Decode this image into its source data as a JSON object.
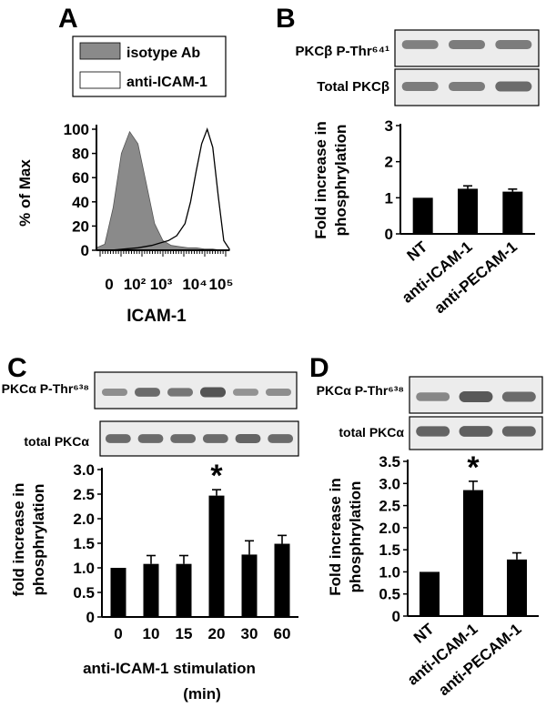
{
  "panels": {
    "A": {
      "letter": "A"
    },
    "B": {
      "letter": "B"
    },
    "C": {
      "letter": "C"
    },
    "D": {
      "letter": "D"
    }
  },
  "chart_data": [
    {
      "id": "A",
      "type": "area",
      "legend": [
        "isotype Ab",
        "anti-ICAM-1"
      ],
      "ylabel": "% of Max",
      "xlabel": "ICAM-1",
      "yticks": [
        "0",
        "20",
        "40",
        "60",
        "80",
        "100"
      ],
      "xticks": [
        "0",
        "10²",
        "10³",
        "10⁴",
        "10⁵"
      ],
      "ylim": [
        0,
        100
      ],
      "series": [
        {
          "name": "isotype Ab",
          "fill": "#8a8a8a",
          "x": [
            0.0,
            0.3,
            0.6,
            0.9,
            1.2,
            1.5,
            1.8,
            2.1,
            2.4,
            2.7,
            3.0,
            3.3,
            3.6,
            3.9,
            4.2,
            4.5,
            4.8
          ],
          "y": [
            2,
            5,
            35,
            80,
            98,
            88,
            55,
            22,
            8,
            4,
            3,
            2,
            2,
            1,
            1,
            0,
            0
          ]
        },
        {
          "name": "anti-ICAM-1",
          "fill": "none",
          "x": [
            0.0,
            0.5,
            1.0,
            1.5,
            2.0,
            2.3,
            2.6,
            2.9,
            3.2,
            3.4,
            3.6,
            3.8,
            4.0,
            4.2,
            4.4,
            4.6,
            4.8
          ],
          "y": [
            0,
            0,
            1,
            2,
            4,
            6,
            8,
            12,
            22,
            40,
            65,
            88,
            100,
            85,
            45,
            8,
            1
          ]
        }
      ]
    },
    {
      "id": "B",
      "type": "bar",
      "blot_labels": [
        "PKCβ P-Thr⁶⁴¹",
        "Total PKCβ"
      ],
      "ylabel": [
        "Fold increase in",
        "phosphrylation"
      ],
      "categories": [
        "NT",
        "anti-ICAM-1",
        "anti-PECAM-1"
      ],
      "values": [
        1.0,
        1.25,
        1.17
      ],
      "errors": [
        0,
        0.08,
        0.07
      ],
      "yticks": [
        "0",
        "1",
        "2",
        "3"
      ],
      "ylim": [
        0,
        3
      ]
    },
    {
      "id": "C",
      "type": "bar",
      "blot_labels": [
        "PKCα P-Thr⁶³⁸",
        "total PKCα"
      ],
      "ylabel": [
        "fold increase in",
        "phosphrylation"
      ],
      "categories": [
        "0",
        "10",
        "15",
        "20",
        "30",
        "60"
      ],
      "values": [
        1.0,
        1.08,
        1.08,
        2.47,
        1.27,
        1.49
      ],
      "errors": [
        0,
        0.17,
        0.17,
        0.12,
        0.28,
        0.17
      ],
      "significant": [
        false,
        false,
        false,
        true,
        false,
        false
      ],
      "yticks": [
        "0",
        "0.5",
        "1.0",
        "1.5",
        "2.0",
        "2.5",
        "3.0"
      ],
      "ylim": [
        0,
        3
      ],
      "xlabel": [
        "anti-ICAM-1  stimulation",
        "(min)"
      ]
    },
    {
      "id": "D",
      "type": "bar",
      "blot_labels": [
        "PKCα P-Thr⁶³⁸",
        "total PKCα"
      ],
      "ylabel": [
        "Fold increase in",
        "phosphrylation"
      ],
      "categories": [
        "NT",
        "anti-ICAM-1",
        "anti-PECAM-1"
      ],
      "values": [
        1.0,
        2.85,
        1.28
      ],
      "errors": [
        0,
        0.2,
        0.15
      ],
      "significant": [
        false,
        true,
        false
      ],
      "yticks": [
        "0",
        "0.5",
        "1.0",
        "1.5",
        "2.0",
        "2.5",
        "3.0",
        "3.5"
      ],
      "ylim": [
        0,
        3.5
      ]
    }
  ],
  "significance_mark": "*",
  "blots": {
    "B_phospho": [
      0.55,
      0.6,
      0.6
    ],
    "B_total": [
      0.6,
      0.6,
      0.75
    ],
    "C_phospho": [
      0.45,
      0.75,
      0.65,
      0.95,
      0.4,
      0.45
    ],
    "C_total": [
      0.75,
      0.75,
      0.75,
      0.75,
      0.8,
      0.75
    ],
    "D_phospho": [
      0.5,
      0.9,
      0.75
    ],
    "D_total": [
      0.8,
      0.85,
      0.8
    ]
  }
}
